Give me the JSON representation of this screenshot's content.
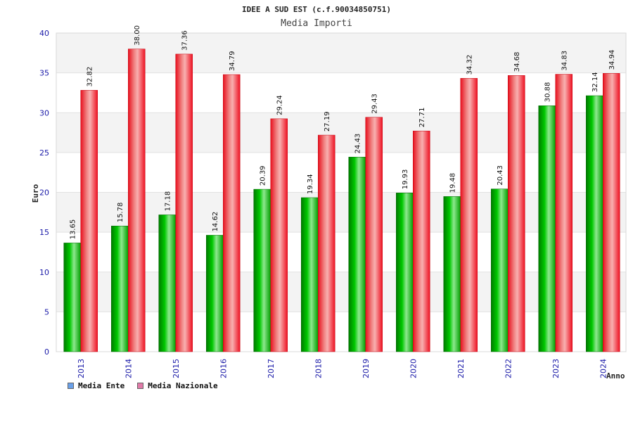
{
  "chart_data": {
    "type": "bar",
    "title": "IDEE A SUD EST (c.f.90034850751)",
    "subtitle": "Media Importi",
    "xlabel": "Anno",
    "ylabel": "Euro",
    "ylim": [
      0,
      40
    ],
    "yticks": [
      0,
      5,
      10,
      15,
      20,
      25,
      30,
      35,
      40
    ],
    "grid": "horizontal bands",
    "legend_position": "bottom-left",
    "categories": [
      "2013",
      "2014",
      "2015",
      "2016",
      "2017",
      "2018",
      "2019",
      "2020",
      "2021",
      "2022",
      "2023",
      "2024"
    ],
    "series": [
      {
        "name": "Media Ente",
        "values": [
          13.65,
          15.78,
          17.18,
          14.62,
          20.39,
          19.34,
          24.43,
          19.93,
          19.48,
          20.43,
          30.88,
          32.14
        ],
        "labels": [
          "13.65",
          "15.78",
          "17.18",
          "14.62",
          "20.39",
          "19.34",
          "24.43",
          "19.93",
          "19.48",
          "20.43",
          "30.88",
          "32.14"
        ],
        "color": "#00a000",
        "legend_color": "#6aa0e8"
      },
      {
        "name": "Media Nazionale",
        "values": [
          32.82,
          38.0,
          37.36,
          34.79,
          29.24,
          27.19,
          29.43,
          27.71,
          34.32,
          34.68,
          34.83,
          34.94
        ],
        "labels": [
          "32.82",
          "38.00",
          "37.36",
          "34.79",
          "29.24",
          "27.19",
          "29.43",
          "27.71",
          "34.32",
          "34.68",
          "34.83",
          "34.94"
        ],
        "color": "#ee1122",
        "legend_color": "#e07aa8"
      }
    ]
  }
}
